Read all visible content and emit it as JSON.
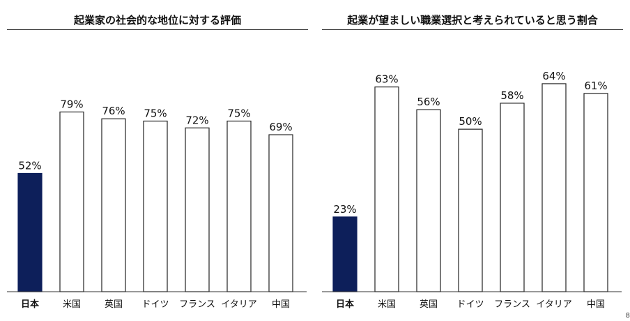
{
  "chart_data": [
    {
      "type": "bar",
      "title": "起業家の社会的な地位に対する評価",
      "categories": [
        "日本",
        "米国",
        "英国",
        "ドイツ",
        "フランス",
        "イタリア",
        "中国"
      ],
      "values": [
        52,
        79,
        76,
        75,
        72,
        75,
        69
      ],
      "value_labels": [
        "52%",
        "79%",
        "76%",
        "75%",
        "72%",
        "75%",
        "69%"
      ],
      "unit": "%",
      "ylim": [
        0,
        100
      ],
      "highlight_index": 0,
      "grid": false,
      "colors": {
        "highlight": "#0d1f5a",
        "bar": "#ffffff",
        "outline": "#222222"
      }
    },
    {
      "type": "bar",
      "title": "起業が望ましい職業選択と考えられていると思う割合",
      "categories": [
        "日本",
        "米国",
        "英国",
        "ドイツ",
        "フランス",
        "イタリア",
        "中国"
      ],
      "values": [
        23,
        63,
        56,
        50,
        58,
        64,
        61
      ],
      "value_labels": [
        "23%",
        "63%",
        "56%",
        "50%",
        "58%",
        "64%",
        "61%"
      ],
      "unit": "%",
      "ylim": [
        0,
        70
      ],
      "highlight_index": 0,
      "grid": false,
      "colors": {
        "highlight": "#0d1f5a",
        "bar": "#ffffff",
        "outline": "#222222"
      }
    }
  ],
  "page": {
    "number": "8"
  }
}
